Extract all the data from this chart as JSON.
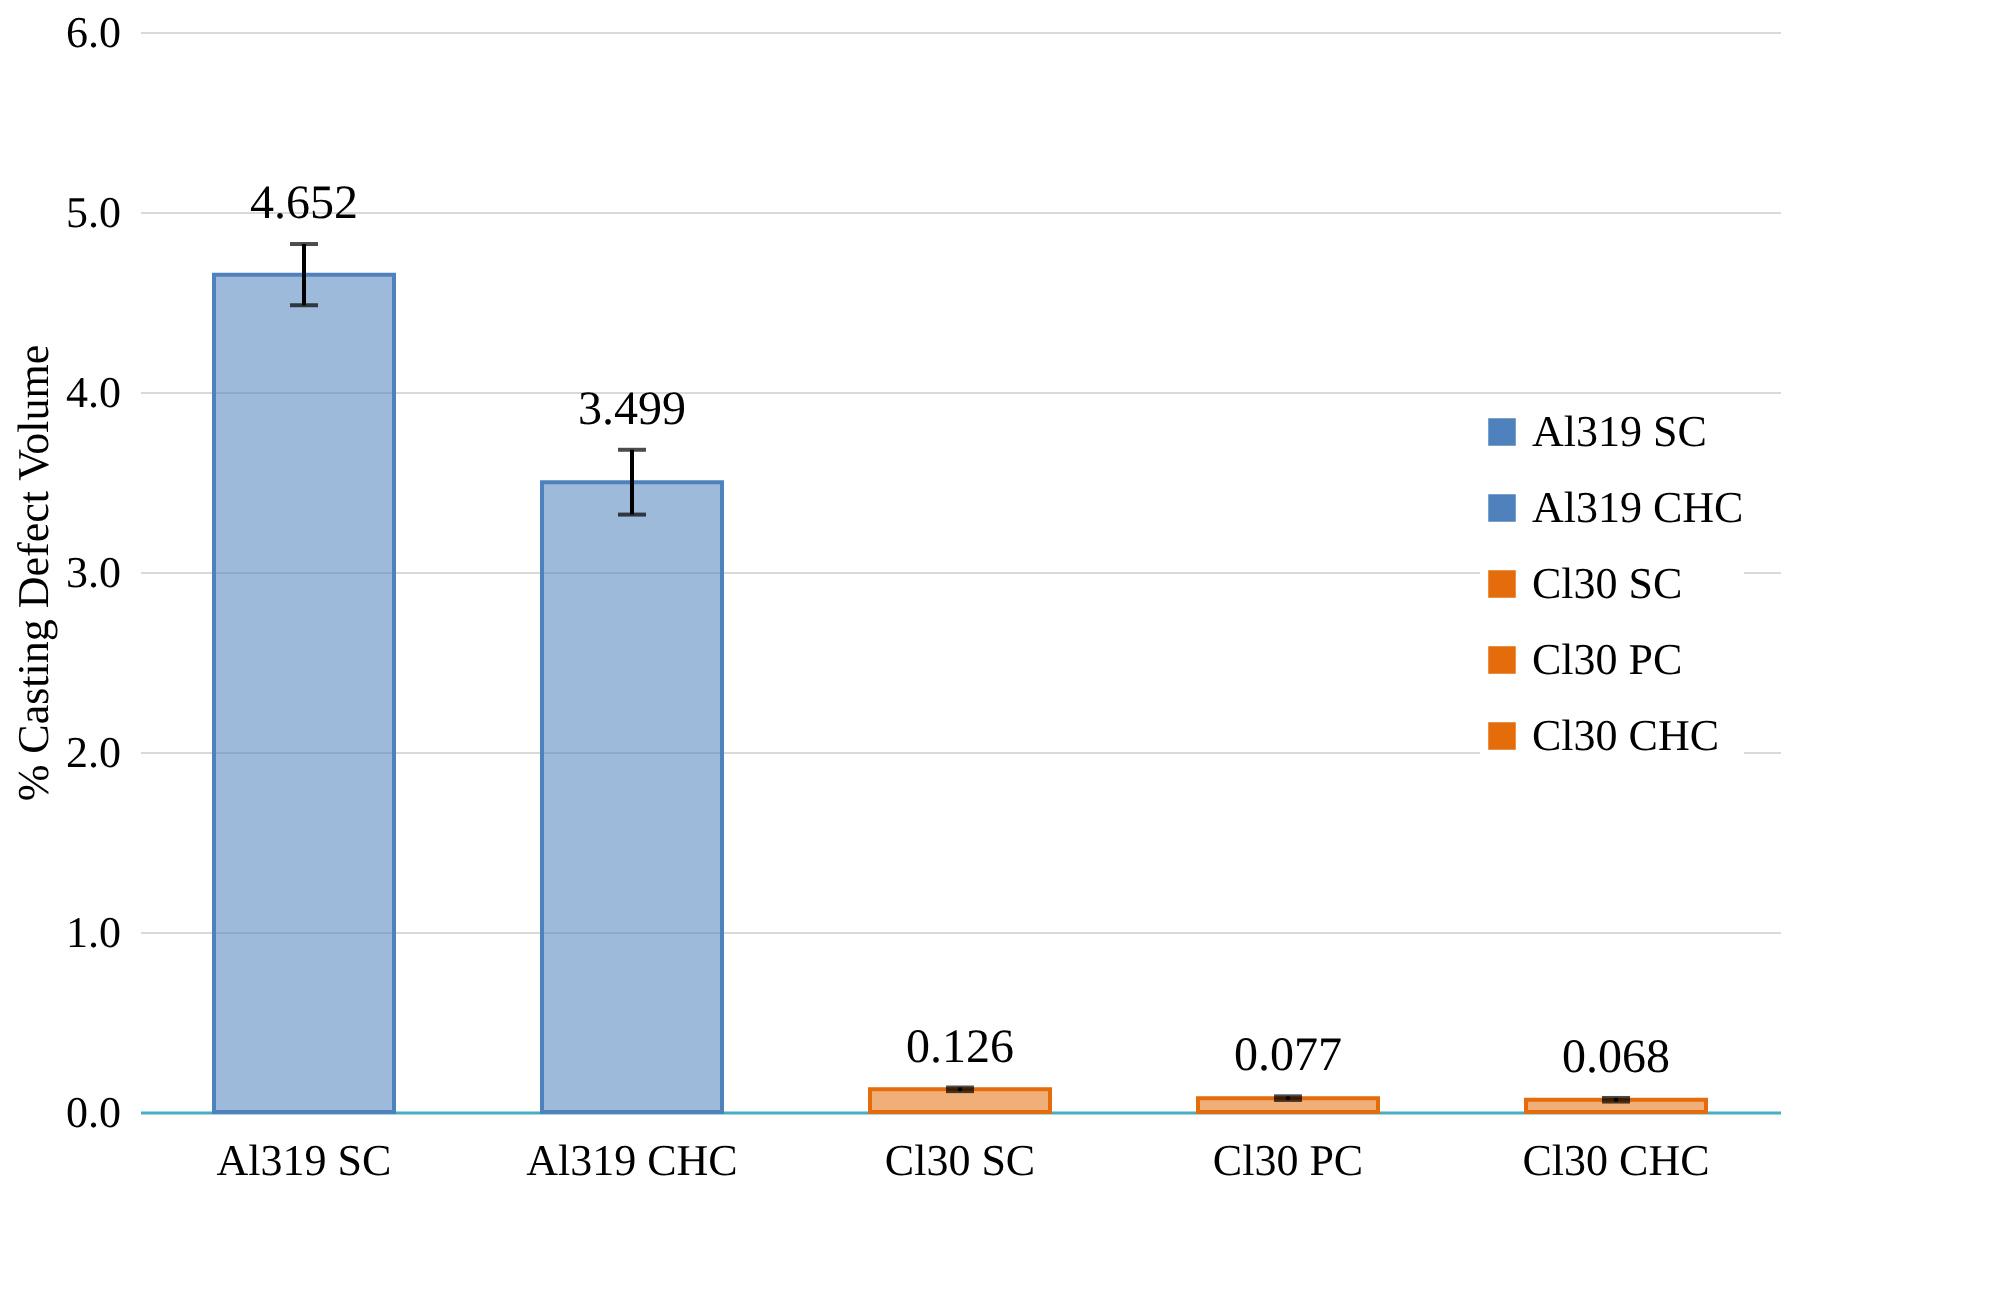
{
  "chart_data": {
    "type": "bar",
    "ylabel": "% Casting Defect Volume",
    "categories": [
      "Al319 SC",
      "Al319 CHC",
      "Cl30 SC",
      "Cl30 PC",
      "Cl30 CHC"
    ],
    "series": [
      {
        "name": "Al319 SC",
        "color": "#4f81bd",
        "values": [
          4.652,
          null,
          null,
          null,
          null
        ],
        "errors": [
          0.17,
          null,
          null,
          null,
          null
        ]
      },
      {
        "name": "Al319 CHC",
        "color": "#4f81bd",
        "values": [
          null,
          3.499,
          null,
          null,
          null
        ],
        "errors": [
          null,
          0.18,
          null,
          null,
          null
        ]
      },
      {
        "name": "Cl30 SC",
        "color": "#e46c0a",
        "values": [
          null,
          null,
          0.126,
          null,
          null
        ],
        "errors": [
          null,
          null,
          0.01,
          null,
          null
        ]
      },
      {
        "name": "Cl30 PC",
        "color": "#e46c0a",
        "values": [
          null,
          null,
          null,
          0.077,
          null
        ],
        "errors": [
          null,
          null,
          null,
          0.01,
          null
        ]
      },
      {
        "name": "Cl30 CHC",
        "color": "#e46c0a",
        "values": [
          null,
          null,
          null,
          null,
          0.068
        ],
        "errors": [
          null,
          null,
          null,
          null,
          0.01
        ]
      }
    ],
    "data_labels": true,
    "ylim": [
      0,
      6
    ],
    "yticks": [
      {
        "value": 0,
        "label": "0.0"
      },
      {
        "value": 1,
        "label": "1.0"
      },
      {
        "value": 2,
        "label": "2.0"
      },
      {
        "value": 3,
        "label": "3.0"
      },
      {
        "value": 4,
        "label": "4.0"
      },
      {
        "value": 5,
        "label": "5.0"
      },
      {
        "value": 6,
        "label": "6.0"
      }
    ],
    "grid": "y",
    "legend": "right"
  }
}
